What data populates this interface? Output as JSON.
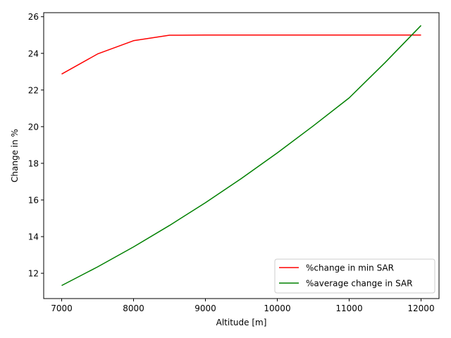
{
  "chart_data": {
    "type": "line",
    "title": "",
    "xlabel": "Altitude [m]",
    "ylabel": "Change in %",
    "xlim": [
      6750,
      12250
    ],
    "ylim": [
      10.62,
      26.22
    ],
    "xticks": [
      7000,
      8000,
      9000,
      10000,
      11000,
      12000
    ],
    "yticks": [
      12,
      14,
      16,
      18,
      20,
      22,
      24,
      26
    ],
    "grid": false,
    "legend_position": "lower right",
    "series": [
      {
        "name": "%change in min SAR",
        "color": "#ff0000",
        "x": [
          7000,
          7500,
          8000,
          8500,
          9000,
          10000,
          11000,
          12000
        ],
        "y": [
          22.87,
          23.97,
          24.69,
          24.99,
          25.0,
          25.0,
          25.0,
          25.0
        ]
      },
      {
        "name": "%average change in SAR",
        "color": "#008000",
        "x": [
          7000,
          7500,
          8000,
          8500,
          9000,
          9500,
          10000,
          10500,
          11000,
          11500,
          12000
        ],
        "y": [
          11.33,
          12.35,
          13.44,
          14.61,
          15.85,
          17.17,
          18.57,
          20.04,
          21.57,
          23.5,
          25.52
        ]
      }
    ]
  }
}
